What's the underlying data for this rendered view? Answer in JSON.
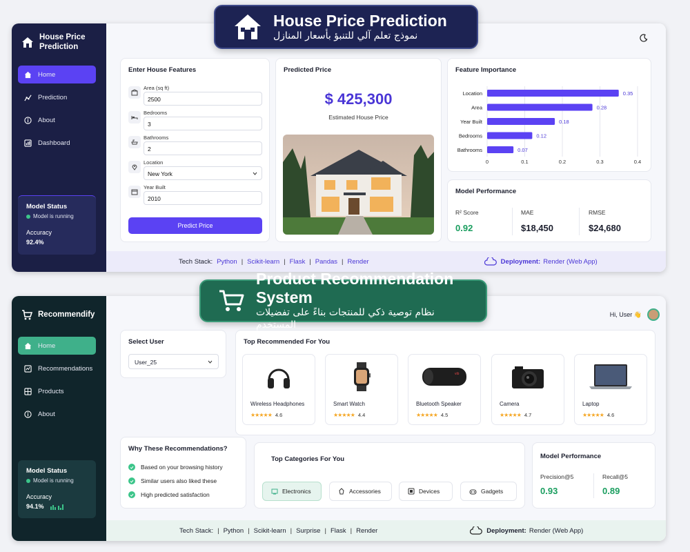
{
  "banner1": {
    "title": "House Price Prediction",
    "subtitle": "نموذج تعلم آلي للتنبؤ بأسعار المنازل"
  },
  "banner2": {
    "title": "Product Recommendation System",
    "subtitle": "نظام توصية ذكي للمنتجات بناءً على تفضيلات المستخدم"
  },
  "app1": {
    "brand": "House Price Prediction",
    "nav": [
      {
        "label": "Home",
        "icon": "home-icon"
      },
      {
        "label": "Prediction",
        "icon": "prediction-icon"
      },
      {
        "label": "About",
        "icon": "info-icon"
      },
      {
        "label": "Dashboard",
        "icon": "dashboard-icon"
      }
    ],
    "status": {
      "title": "Model Status",
      "running": "Model is running",
      "accuracy_label": "Accuracy",
      "accuracy_value": "92.4%"
    },
    "form": {
      "title": "Enter House Features",
      "fields": [
        {
          "label": "Area (sq ft)",
          "value": "2500"
        },
        {
          "label": "Bedrooms",
          "value": "3"
        },
        {
          "label": "Bathrooms",
          "value": "2"
        },
        {
          "label": "Location",
          "value": "New York"
        },
        {
          "label": "Year Built",
          "value": "2010"
        }
      ],
      "button": "Predict Price"
    },
    "prediction": {
      "title": "Predicted Price",
      "price": "$ 425,300",
      "caption": "Estimated House Price"
    },
    "importance_title": "Feature Importance",
    "performance": {
      "title": "Model Performance",
      "metrics": [
        {
          "label": "R² Score",
          "value": "0.92",
          "color": "#1a9e5f"
        },
        {
          "label": "MAE",
          "value": "$18,450",
          "color": "#1c1f2e"
        },
        {
          "label": "RMSE",
          "value": "$24,680",
          "color": "#1c1f2e"
        }
      ]
    },
    "tech": {
      "label": "Tech Stack:",
      "items": [
        "Python",
        "Scikit-learn",
        "Flask",
        "Pandas",
        "Render"
      ],
      "deploy_label": "Deployment:",
      "deploy_value": "Render (Web App)"
    }
  },
  "app2": {
    "brand": "Recommendify",
    "greeting": "Hi, User 👋",
    "nav": [
      {
        "label": "Home",
        "icon": "home-icon"
      },
      {
        "label": "Recommendations",
        "icon": "recommendations-icon"
      },
      {
        "label": "Products",
        "icon": "products-icon"
      },
      {
        "label": "About",
        "icon": "info-icon"
      }
    ],
    "status": {
      "title": "Model Status",
      "running": "Model is running",
      "accuracy_label": "Accuracy",
      "accuracy_value": "94.1%"
    },
    "select_user": {
      "title": "Select User",
      "value": "User_25"
    },
    "top_title": "Top Recommended For You",
    "products": [
      {
        "name": "Wireless Headphones",
        "rating": "4.6",
        "icon": "headphones-icon"
      },
      {
        "name": "Smart Watch",
        "rating": "4.4",
        "icon": "smartwatch-icon"
      },
      {
        "name": "Bluetooth Speaker",
        "rating": "4.5",
        "icon": "speaker-icon"
      },
      {
        "name": "Camera",
        "rating": "4.7",
        "icon": "camera-icon"
      },
      {
        "name": "Laptop",
        "rating": "4.6",
        "icon": "laptop-icon"
      }
    ],
    "why": {
      "title": "Why These Recommendations?",
      "reasons": [
        "Based on your browsing history",
        "Similar users also liked these",
        "High predicted satisfaction"
      ]
    },
    "categories": {
      "title": "Top Categories For You",
      "items": [
        "Electronics",
        "Accessories",
        "Devices",
        "Gadgets"
      ]
    },
    "performance": {
      "title": "Model Performance",
      "metrics": [
        {
          "label": "Precision@5",
          "value": "0.93"
        },
        {
          "label": "Recall@5",
          "value": "0.89"
        }
      ]
    },
    "tech": {
      "label": "Tech Stack:",
      "items": [
        "Python",
        "Scikit-learn",
        "Surprise",
        "Flask",
        "Render"
      ],
      "deploy_label": "Deployment:",
      "deploy_value": "Render (Web App)"
    }
  },
  "chart_data": {
    "type": "bar",
    "orientation": "horizontal",
    "title": "Feature Importance",
    "categories": [
      "Location",
      "Area",
      "Year Built",
      "Bedrooms",
      "Bathrooms"
    ],
    "values": [
      0.35,
      0.28,
      0.18,
      0.12,
      0.07
    ],
    "xlim": [
      0,
      0.4
    ],
    "xticks": [
      "0",
      "0.1",
      "0.2",
      "0.3",
      "0.4"
    ],
    "color": "#5b42f3",
    "grid": true
  }
}
